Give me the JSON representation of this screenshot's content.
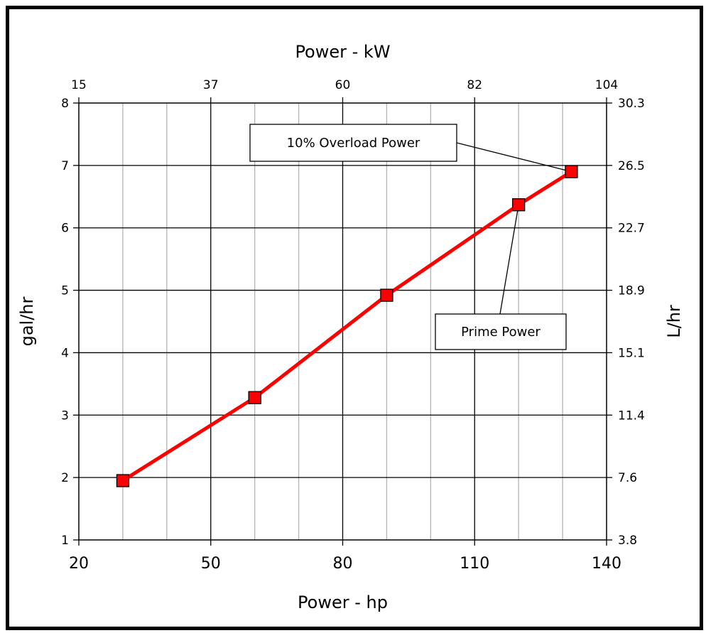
{
  "chart_data": {
    "type": "line",
    "xlabel": "Power - hp",
    "ylabel": "gal/hr",
    "x2label": "Power - kW",
    "y2label": "L/hr",
    "xlim": [
      20,
      140
    ],
    "ylim": [
      1,
      8
    ],
    "x_ticks": [
      "20",
      "50",
      "80",
      "110",
      "140"
    ],
    "y_ticks": [
      "1",
      "2",
      "3",
      "4",
      "5",
      "6",
      "7",
      "8"
    ],
    "x2_ticks": [
      "15",
      "37",
      "60",
      "82",
      "104"
    ],
    "y2_ticks": [
      "3.8",
      "7.6",
      "11.4",
      "15.1",
      "18.9",
      "22.7",
      "26.5",
      "30.3"
    ],
    "grid": true,
    "series": [
      {
        "x": [
          30,
          60,
          90,
          120,
          132
        ],
        "y": [
          1.95,
          3.28,
          4.92,
          6.37,
          6.9
        ],
        "color": "#ff0000",
        "marker": "square"
      }
    ],
    "annotations": [
      {
        "text": "10% Overload Power",
        "point_index": 4
      },
      {
        "text": "Prime Power",
        "point_index": 3
      }
    ]
  }
}
